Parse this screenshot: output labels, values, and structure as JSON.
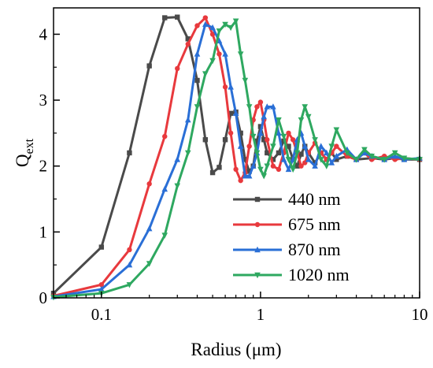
{
  "chart_data": {
    "type": "line",
    "title": "",
    "xlabel": "Radius (μm)",
    "ylabel_main": "Q",
    "ylabel_sub": "ext",
    "xscale": "log",
    "xlim": [
      0.05,
      10
    ],
    "ylim": [
      0,
      4.4
    ],
    "xticks": [
      0.1,
      1,
      10
    ],
    "xtick_labels": [
      "0.1",
      "1",
      "10"
    ],
    "yticks": [
      0,
      1,
      2,
      3,
      4
    ],
    "ytick_labels": [
      "0",
      "1",
      "2",
      "3",
      "4"
    ],
    "grid": false,
    "legend_position": "center-right",
    "series": [
      {
        "name": "440 nm",
        "color": "#4a4a4a",
        "marker": "square",
        "points": [
          [
            0.05,
            0.07
          ],
          [
            0.1,
            0.77
          ],
          [
            0.15,
            2.2
          ],
          [
            0.2,
            3.52
          ],
          [
            0.25,
            4.25
          ],
          [
            0.3,
            4.26
          ],
          [
            0.35,
            3.93
          ],
          [
            0.4,
            3.3
          ],
          [
            0.45,
            2.4
          ],
          [
            0.5,
            1.9
          ],
          [
            0.55,
            1.98
          ],
          [
            0.6,
            2.4
          ],
          [
            0.65,
            2.8
          ],
          [
            0.7,
            2.82
          ],
          [
            0.75,
            2.5
          ],
          [
            0.8,
            2.1
          ],
          [
            0.85,
            1.92
          ],
          [
            0.9,
            2.0
          ],
          [
            0.95,
            2.38
          ],
          [
            1.0,
            2.6
          ],
          [
            1.05,
            2.4
          ],
          [
            1.1,
            2.2
          ],
          [
            1.2,
            2.1
          ],
          [
            1.3,
            2.2
          ],
          [
            1.4,
            2.38
          ],
          [
            1.5,
            2.3
          ],
          [
            1.6,
            2.1
          ],
          [
            1.7,
            2.0
          ],
          [
            1.8,
            2.18
          ],
          [
            1.9,
            2.3
          ],
          [
            2.0,
            2.2
          ],
          [
            2.2,
            2.05
          ],
          [
            2.4,
            2.2
          ],
          [
            2.6,
            2.1
          ],
          [
            2.8,
            2.2
          ],
          [
            3.0,
            2.1
          ],
          [
            3.5,
            2.15
          ],
          [
            4.0,
            2.1
          ],
          [
            5.0,
            2.12
          ],
          [
            6.0,
            2.1
          ],
          [
            7.0,
            2.12
          ],
          [
            8.0,
            2.1
          ],
          [
            10.0,
            2.1
          ]
        ]
      },
      {
        "name": "675 nm",
        "color": "#e8393d",
        "marker": "circle",
        "points": [
          [
            0.05,
            0.03
          ],
          [
            0.1,
            0.2
          ],
          [
            0.15,
            0.73
          ],
          [
            0.2,
            1.73
          ],
          [
            0.25,
            2.45
          ],
          [
            0.3,
            3.48
          ],
          [
            0.35,
            3.85
          ],
          [
            0.4,
            4.13
          ],
          [
            0.45,
            4.25
          ],
          [
            0.5,
            4.0
          ],
          [
            0.55,
            3.7
          ],
          [
            0.6,
            3.2
          ],
          [
            0.65,
            2.5
          ],
          [
            0.7,
            1.95
          ],
          [
            0.75,
            1.78
          ],
          [
            0.8,
            1.9
          ],
          [
            0.85,
            2.3
          ],
          [
            0.9,
            2.7
          ],
          [
            0.95,
            2.9
          ],
          [
            1.0,
            2.97
          ],
          [
            1.05,
            2.7
          ],
          [
            1.1,
            2.4
          ],
          [
            1.2,
            2.0
          ],
          [
            1.3,
            1.95
          ],
          [
            1.4,
            2.2
          ],
          [
            1.5,
            2.5
          ],
          [
            1.6,
            2.4
          ],
          [
            1.7,
            2.2
          ],
          [
            1.8,
            2.0
          ],
          [
            1.9,
            2.05
          ],
          [
            2.0,
            2.2
          ],
          [
            2.2,
            2.35
          ],
          [
            2.4,
            2.2
          ],
          [
            2.6,
            2.1
          ],
          [
            2.8,
            2.2
          ],
          [
            3.0,
            2.3
          ],
          [
            3.5,
            2.15
          ],
          [
            4.0,
            2.1
          ],
          [
            4.5,
            2.2
          ],
          [
            5.0,
            2.1
          ],
          [
            6.0,
            2.15
          ],
          [
            7.0,
            2.1
          ],
          [
            8.0,
            2.12
          ],
          [
            10.0,
            2.1
          ]
        ]
      },
      {
        "name": "870 nm",
        "color": "#2a6fd6",
        "marker": "triangle-up",
        "points": [
          [
            0.05,
            0.02
          ],
          [
            0.1,
            0.13
          ],
          [
            0.15,
            0.5
          ],
          [
            0.2,
            1.05
          ],
          [
            0.25,
            1.65
          ],
          [
            0.3,
            2.1
          ],
          [
            0.35,
            2.7
          ],
          [
            0.4,
            3.7
          ],
          [
            0.45,
            4.15
          ],
          [
            0.5,
            4.1
          ],
          [
            0.55,
            3.9
          ],
          [
            0.6,
            3.7
          ],
          [
            0.65,
            3.2
          ],
          [
            0.7,
            2.8
          ],
          [
            0.75,
            2.3
          ],
          [
            0.8,
            1.85
          ],
          [
            0.85,
            1.85
          ],
          [
            0.9,
            2.0
          ],
          [
            0.95,
            2.2
          ],
          [
            1.0,
            2.5
          ],
          [
            1.05,
            2.75
          ],
          [
            1.1,
            2.9
          ],
          [
            1.2,
            2.9
          ],
          [
            1.3,
            2.5
          ],
          [
            1.4,
            2.1
          ],
          [
            1.5,
            1.95
          ],
          [
            1.6,
            2.1
          ],
          [
            1.7,
            2.4
          ],
          [
            1.8,
            2.5
          ],
          [
            1.9,
            2.3
          ],
          [
            2.0,
            2.1
          ],
          [
            2.2,
            2.0
          ],
          [
            2.4,
            2.3
          ],
          [
            2.6,
            2.2
          ],
          [
            2.8,
            2.05
          ],
          [
            3.0,
            2.15
          ],
          [
            3.5,
            2.25
          ],
          [
            4.0,
            2.1
          ],
          [
            4.5,
            2.2
          ],
          [
            5.0,
            2.15
          ],
          [
            6.0,
            2.1
          ],
          [
            7.0,
            2.15
          ],
          [
            8.0,
            2.1
          ],
          [
            10.0,
            2.12
          ]
        ]
      },
      {
        "name": "1020 nm",
        "color": "#2ea860",
        "marker": "triangle-down",
        "points": [
          [
            0.05,
            0.01
          ],
          [
            0.1,
            0.07
          ],
          [
            0.15,
            0.2
          ],
          [
            0.2,
            0.52
          ],
          [
            0.25,
            0.95
          ],
          [
            0.3,
            1.7
          ],
          [
            0.35,
            2.2
          ],
          [
            0.4,
            2.9
          ],
          [
            0.45,
            3.4
          ],
          [
            0.5,
            3.6
          ],
          [
            0.55,
            4.05
          ],
          [
            0.6,
            4.15
          ],
          [
            0.65,
            4.1
          ],
          [
            0.7,
            4.2
          ],
          [
            0.75,
            3.7
          ],
          [
            0.8,
            3.3
          ],
          [
            0.85,
            2.9
          ],
          [
            0.9,
            2.45
          ],
          [
            0.95,
            2.2
          ],
          [
            1.0,
            1.95
          ],
          [
            1.05,
            1.85
          ],
          [
            1.1,
            2.0
          ],
          [
            1.2,
            2.3
          ],
          [
            1.3,
            2.7
          ],
          [
            1.4,
            2.45
          ],
          [
            1.5,
            2.1
          ],
          [
            1.6,
            1.95
          ],
          [
            1.7,
            2.2
          ],
          [
            1.8,
            2.7
          ],
          [
            1.9,
            2.9
          ],
          [
            2.0,
            2.75
          ],
          [
            2.2,
            2.4
          ],
          [
            2.4,
            2.1
          ],
          [
            2.6,
            2.0
          ],
          [
            2.8,
            2.3
          ],
          [
            3.0,
            2.55
          ],
          [
            3.5,
            2.2
          ],
          [
            4.0,
            2.1
          ],
          [
            4.5,
            2.25
          ],
          [
            5.0,
            2.15
          ],
          [
            6.0,
            2.1
          ],
          [
            7.0,
            2.2
          ],
          [
            8.0,
            2.12
          ],
          [
            10.0,
            2.1
          ]
        ]
      }
    ]
  }
}
